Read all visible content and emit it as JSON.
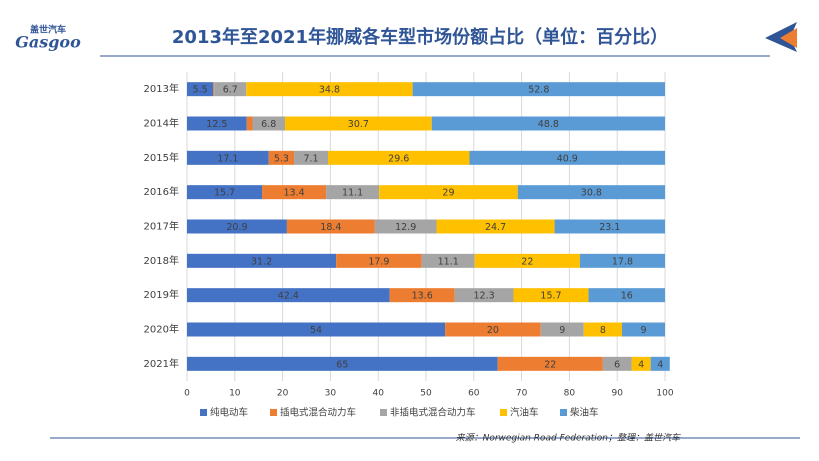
{
  "header": {
    "logo_cn": "盖世汽车",
    "logo_en": "Gasgoo"
  },
  "chart_data": {
    "type": "stacked-barh",
    "title": "2013年至2021年挪威各车型市场份额占比（单位：百分比）",
    "categories": [
      "2013年",
      "2014年",
      "2015年",
      "2016年",
      "2017年",
      "2018年",
      "2019年",
      "2020年",
      "2021年"
    ],
    "series": [
      {
        "name": "纯电动车",
        "color": "#4472c4",
        "values": [
          5.5,
          12.5,
          17.1,
          15.7,
          20.9,
          31.2,
          42.4,
          54,
          65
        ]
      },
      {
        "name": "插电式混合动力车",
        "color": "#ed7d31",
        "values": [
          0.2,
          1.2,
          5.3,
          13.4,
          18.4,
          17.9,
          13.6,
          20,
          22
        ],
        "value_labels": [
          null,
          null,
          "5.3",
          "13.4",
          "18.4",
          "17.9",
          "13.6",
          "20",
          "22"
        ]
      },
      {
        "name": "非插电式混合动力车",
        "color": "#a5a5a5",
        "values": [
          6.7,
          6.8,
          7.1,
          11.1,
          12.9,
          11.1,
          12.3,
          9,
          6
        ]
      },
      {
        "name": "汽油车",
        "color": "#ffc000",
        "values": [
          34.8,
          30.7,
          29.6,
          29,
          24.7,
          22,
          15.7,
          8,
          4
        ]
      },
      {
        "name": "柴油车",
        "color": "#5b9bd5",
        "values": [
          52.8,
          48.8,
          40.9,
          30.8,
          23.1,
          17.8,
          16,
          9,
          4
        ]
      }
    ],
    "xlim": [
      0,
      100
    ],
    "xticks": [
      0,
      10,
      20,
      30,
      40,
      50,
      60,
      70,
      80,
      90,
      100
    ],
    "grid": true,
    "legend": "bottom"
  },
  "footer": {
    "source": "来源：Norwegian Road Federation；整理：盖世汽车"
  }
}
